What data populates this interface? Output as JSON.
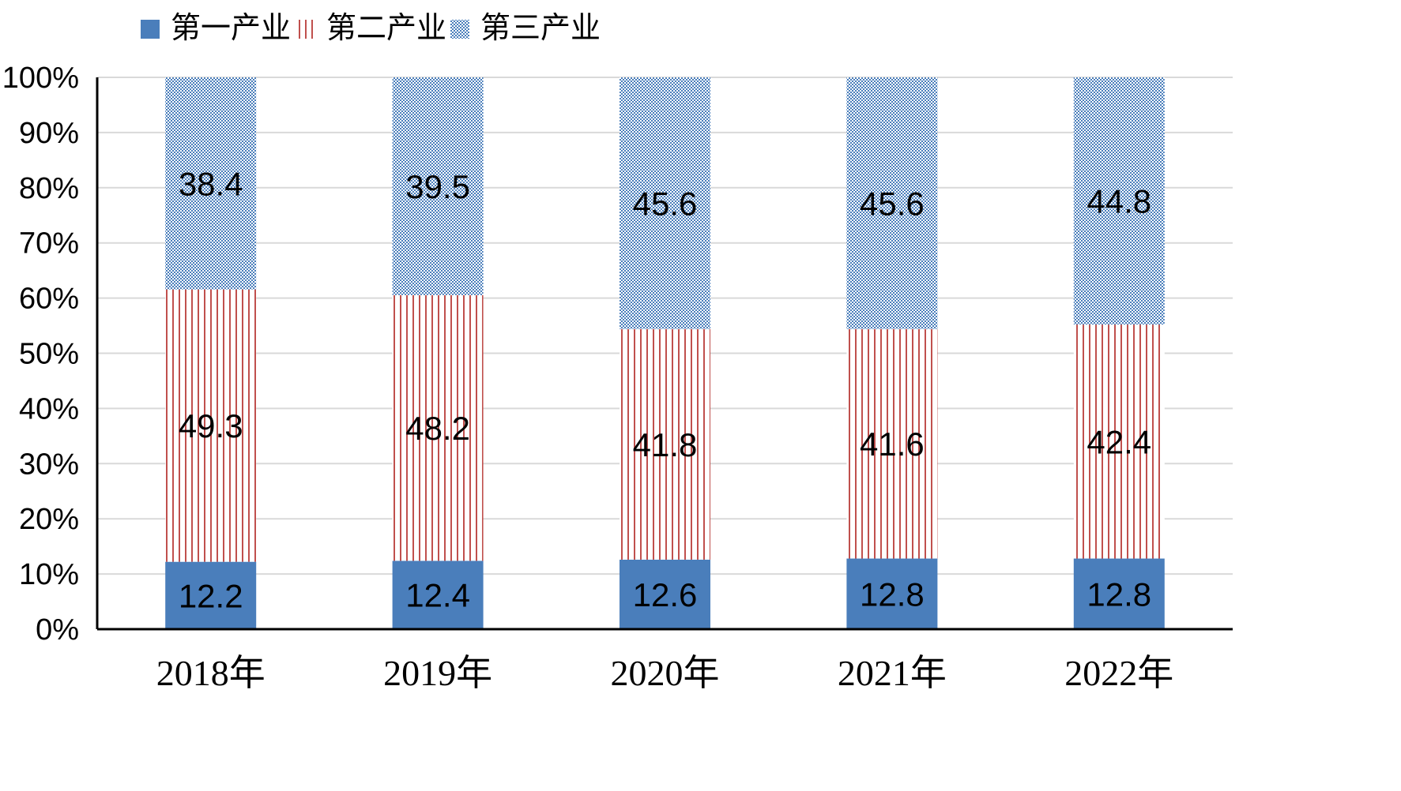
{
  "chart_data": {
    "type": "bar",
    "stacked": true,
    "percent_axis": true,
    "categories": [
      "2018年",
      "2019年",
      "2020年",
      "2021年",
      "2022年"
    ],
    "series": [
      {
        "name": "第一产业",
        "values": [
          12.2,
          12.4,
          12.6,
          12.8,
          12.8
        ],
        "color": "#4a7ebb",
        "pattern": "solid"
      },
      {
        "name": "第二产业",
        "values": [
          49.3,
          48.2,
          41.8,
          41.6,
          42.4
        ],
        "color": "#c0504d",
        "pattern": "vertical-lines"
      },
      {
        "name": "第三产业",
        "values": [
          38.4,
          39.5,
          45.6,
          45.6,
          44.8
        ],
        "color": "#4a7ebb",
        "pattern": "checker"
      }
    ],
    "y_ticks": [
      "0%",
      "10%",
      "20%",
      "30%",
      "40%",
      "50%",
      "60%",
      "70%",
      "80%",
      "90%",
      "100%"
    ],
    "ylim": [
      0,
      100
    ],
    "grid": true,
    "legend_position": "top-left",
    "title": "",
    "xlabel": "",
    "ylabel": ""
  }
}
